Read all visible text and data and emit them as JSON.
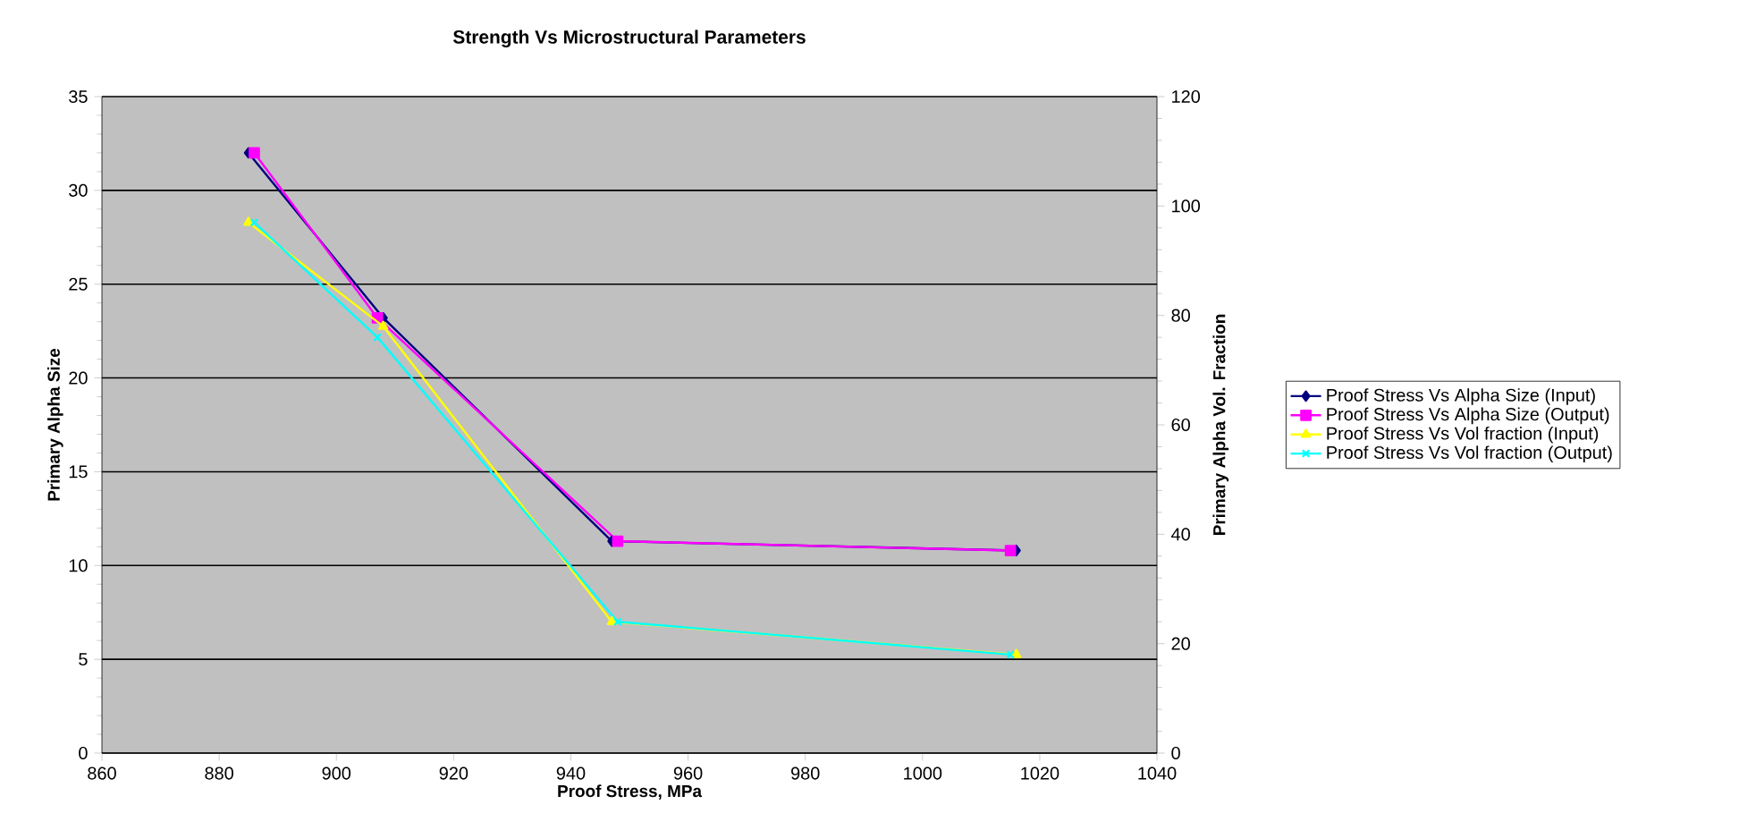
{
  "chart_data": {
    "type": "line",
    "title": "Strength Vs Microstructural Parameters",
    "xlabel": "Proof Stress, MPa",
    "ylabel": "Primary Alpha Size",
    "y2label": "Primary Alpha Vol. Fraction",
    "xlim": [
      860,
      1040
    ],
    "xticks": [
      860,
      880,
      900,
      920,
      940,
      960,
      980,
      1000,
      1020,
      1040
    ],
    "ylim": [
      0,
      35
    ],
    "yticks": [
      0,
      5,
      10,
      15,
      20,
      25,
      30,
      35
    ],
    "y2lim": [
      0,
      120
    ],
    "y2ticks": [
      0,
      20,
      40,
      60,
      80,
      100,
      120
    ],
    "grid": "y",
    "legend": "right",
    "line_style": "solid",
    "series": [
      {
        "name": "Proof Stress Vs Alpha Size (Input)",
        "color": "#000080",
        "marker": "diamond",
        "x": [
          885,
          908,
          947,
          1016
        ],
        "values": [
          32,
          23.2,
          11.3,
          10.8
        ]
      },
      {
        "name": "Proof Stress Vs Alpha Size (Output)",
        "color": "#ff00ff",
        "marker": "square",
        "x": [
          886,
          907,
          948,
          1015
        ],
        "values": [
          32,
          23.2,
          11.3,
          10.8
        ]
      },
      {
        "name": "Proof Stress Vs Vol fraction (Input)",
        "color": "#ffff00",
        "marker": "triangle",
        "axis": "y2",
        "x": [
          885,
          908,
          947,
          1016
        ],
        "values": [
          97,
          78,
          24,
          18
        ]
      },
      {
        "name": "Proof Stress Vs Vol fraction (Output)",
        "color": "#00ffff",
        "marker": "cross",
        "axis": "y2",
        "x": [
          886,
          907,
          948,
          1015
        ],
        "values": [
          97,
          76,
          24,
          18
        ]
      }
    ]
  }
}
